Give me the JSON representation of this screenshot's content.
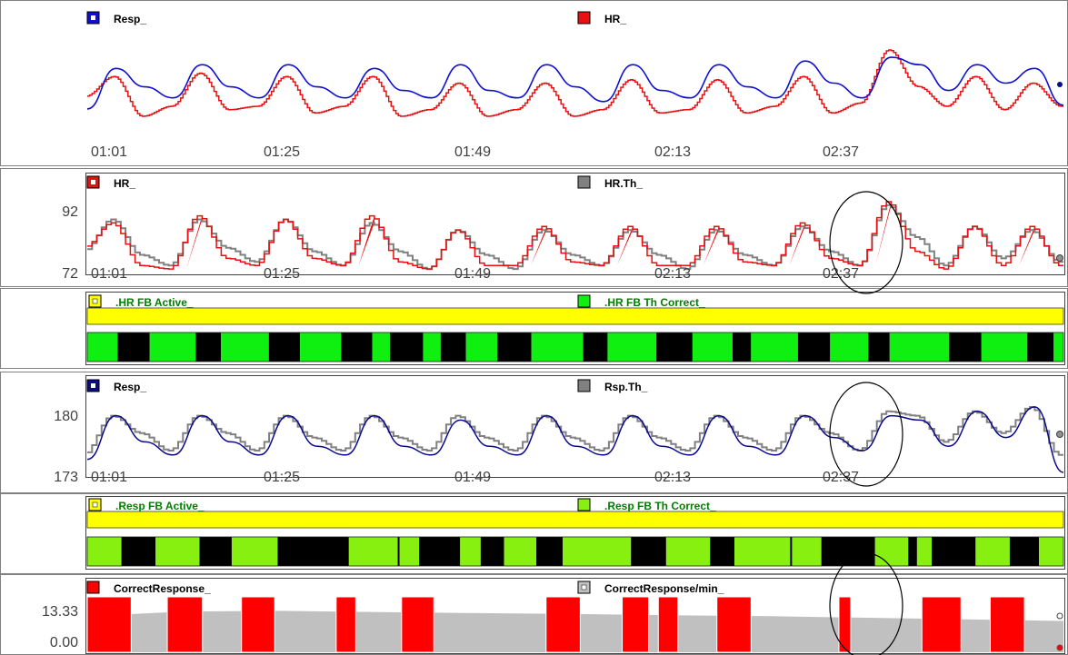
{
  "colors": {
    "resp": "#1010d0",
    "hr": "#e81010",
    "threshold": "#808080",
    "resp_dark": "#0a0a8c",
    "active": "#ffff00",
    "hr_correct": "#10f010",
    "resp_correct": "#88f010",
    "incorrect": "#000000",
    "correct_count": "#ff0000",
    "correct_rate": "#c0c0c0"
  },
  "x_ticks": [
    "01:01",
    "01:25",
    "01:49",
    "02:13",
    "02:37"
  ],
  "panels": {
    "overview": {
      "legend": [
        "Resp_",
        "HR_"
      ]
    },
    "hr": {
      "legend": [
        "HR_",
        "HR.Th_"
      ],
      "y_ticks": [
        "92",
        "72"
      ]
    },
    "hr_fb": {
      "legend": [
        ".HR  FB Active_",
        ".HR  FB Th Correct_"
      ]
    },
    "resp": {
      "legend": [
        "Resp_",
        "Rsp.Th_"
      ],
      "y_ticks": [
        "180",
        "173"
      ]
    },
    "resp_fb": {
      "legend": [
        ".Resp  FB Active_",
        ".Resp FB Th Correct_"
      ]
    },
    "correct": {
      "legend": [
        "CorrectResponse_",
        "CorrectResponse/min_"
      ],
      "y_ticks": [
        "13.33",
        "0.00"
      ]
    }
  },
  "chart_data": [
    {
      "type": "line",
      "series": [
        {
          "name": "Resp_",
          "values": [
            0.2,
            0.75,
            0.5,
            0.35,
            0.8,
            0.5,
            0.35,
            0.8,
            0.5,
            0.35,
            0.75,
            0.45,
            0.35,
            0.8,
            0.45,
            0.35,
            0.8,
            0.5,
            0.3,
            0.8,
            0.45,
            0.35,
            0.8,
            0.5,
            0.35,
            0.85,
            0.55,
            0.35,
            0.9,
            0.8,
            0.45,
            0.8,
            0.55,
            0.75,
            0.25
          ]
        },
        {
          "name": "HR_",
          "values": [
            0.25,
            0.55,
            -0.05,
            0.1,
            0.6,
            0.05,
            0.1,
            0.55,
            0.0,
            0.1,
            0.55,
            -0.05,
            0.05,
            0.45,
            -0.05,
            0.05,
            0.45,
            -0.05,
            0.05,
            0.5,
            0.0,
            0.05,
            0.5,
            0.0,
            0.1,
            0.55,
            0.0,
            0.15,
            0.95,
            0.4,
            0.1,
            0.55,
            0.05,
            0.45,
            0.1
          ]
        }
      ]
    },
    {
      "type": "line",
      "ylim": [
        72,
        92
      ],
      "series": [
        {
          "name": "HR_",
          "values": [
            79,
            86,
            74,
            73,
            88,
            76,
            74,
            87,
            76,
            74,
            88,
            75,
            73,
            84,
            74,
            74,
            85,
            75,
            74,
            85,
            74,
            74,
            85,
            75,
            74,
            86,
            76,
            74,
            92,
            78,
            73,
            85,
            74,
            85,
            74
          ]
        },
        {
          "name": "HR.Th_",
          "values": [
            78,
            87,
            77,
            74,
            87,
            79,
            75,
            87,
            78,
            74,
            86,
            78,
            73,
            84,
            77,
            73,
            84,
            77,
            74,
            84,
            77,
            73,
            84,
            77,
            74,
            85,
            78,
            74,
            91,
            82,
            74,
            85,
            76,
            84,
            75
          ]
        }
      ]
    },
    {
      "type": "timeline",
      "series": [
        {
          "name": ".HR  FB Active_",
          "states": [
            [
              0,
              1,
              1
            ]
          ]
        },
        {
          "name": ".HR  FB Th Correct_",
          "states": [
            [
              0,
              0.031,
              1
            ],
            [
              0.031,
              0.064,
              0
            ],
            [
              0.064,
              0.111,
              1
            ],
            [
              0.111,
              0.137,
              0
            ],
            [
              0.137,
              0.186,
              1
            ],
            [
              0.186,
              0.218,
              0
            ],
            [
              0.218,
              0.26,
              1
            ],
            [
              0.26,
              0.292,
              0
            ],
            [
              0.292,
              0.31,
              1
            ],
            [
              0.31,
              0.344,
              0
            ],
            [
              0.344,
              0.362,
              1
            ],
            [
              0.362,
              0.388,
              0
            ],
            [
              0.388,
              0.42,
              1
            ],
            [
              0.42,
              0.455,
              0
            ],
            [
              0.455,
              0.508,
              1
            ],
            [
              0.508,
              0.533,
              0
            ],
            [
              0.533,
              0.583,
              1
            ],
            [
              0.583,
              0.62,
              0
            ],
            [
              0.62,
              0.661,
              1
            ],
            [
              0.661,
              0.68,
              0
            ],
            [
              0.68,
              0.728,
              1
            ],
            [
              0.728,
              0.761,
              0
            ],
            [
              0.761,
              0.8,
              1
            ],
            [
              0.8,
              0.822,
              0
            ],
            [
              0.822,
              0.883,
              1
            ],
            [
              0.883,
              0.916,
              0
            ],
            [
              0.916,
              0.963,
              1
            ],
            [
              0.963,
              0.99,
              0
            ],
            [
              0.99,
              1,
              1
            ]
          ]
        }
      ]
    },
    {
      "type": "line",
      "ylim": [
        173,
        180
      ],
      "series": [
        {
          "name": "Resp_",
          "values": [
            174.5,
            179.5,
            176.5,
            175.0,
            179.5,
            176.5,
            175.0,
            179.5,
            176.0,
            175.0,
            179.5,
            176.0,
            175.0,
            179.0,
            176.0,
            175.0,
            179.5,
            176.0,
            175.0,
            179.5,
            176.0,
            175.0,
            179.5,
            176.0,
            175.0,
            179.5,
            177.0,
            175.5,
            179.5,
            179.0,
            176.0,
            180.0,
            177.0,
            180.5,
            173.0
          ]
        },
        {
          "name": "Rsp.Th_",
          "values": [
            175.0,
            179.5,
            177.5,
            175.5,
            179.5,
            177.5,
            175.5,
            179.5,
            177.0,
            175.5,
            179.5,
            177.0,
            175.5,
            179.5,
            177.0,
            175.5,
            179.5,
            177.0,
            175.5,
            179.5,
            177.0,
            175.5,
            179.5,
            177.0,
            175.5,
            179.5,
            177.5,
            175.5,
            180.0,
            179.5,
            176.5,
            180.0,
            177.5,
            180.5,
            175.0
          ]
        }
      ]
    },
    {
      "type": "timeline",
      "series": [
        {
          "name": ".Resp  FB Active_",
          "states": [
            [
              0,
              1,
              1
            ]
          ]
        },
        {
          "name": ".Resp FB Th Correct_",
          "states": [
            [
              0,
              0.035,
              1
            ],
            [
              0.035,
              0.07,
              0
            ],
            [
              0.07,
              0.115,
              1
            ],
            [
              0.115,
              0.148,
              0
            ],
            [
              0.148,
              0.195,
              1
            ],
            [
              0.195,
              0.268,
              0
            ],
            [
              0.268,
              0.318,
              1
            ],
            [
              0.318,
              0.32,
              0
            ],
            [
              0.32,
              0.34,
              1
            ],
            [
              0.34,
              0.382,
              0
            ],
            [
              0.382,
              0.403,
              1
            ],
            [
              0.403,
              0.427,
              0
            ],
            [
              0.427,
              0.46,
              1
            ],
            [
              0.46,
              0.487,
              0
            ],
            [
              0.487,
              0.557,
              1
            ],
            [
              0.557,
              0.593,
              0
            ],
            [
              0.593,
              0.638,
              1
            ],
            [
              0.638,
              0.663,
              0
            ],
            [
              0.663,
              0.72,
              1
            ],
            [
              0.72,
              0.722,
              0
            ],
            [
              0.722,
              0.752,
              1
            ],
            [
              0.752,
              0.807,
              0
            ],
            [
              0.807,
              0.841,
              1
            ],
            [
              0.841,
              0.85,
              0
            ],
            [
              0.85,
              0.865,
              1
            ],
            [
              0.865,
              0.91,
              0
            ],
            [
              0.91,
              0.945,
              1
            ],
            [
              0.945,
              0.975,
              0
            ],
            [
              0.975,
              1,
              1
            ]
          ]
        }
      ]
    },
    {
      "type": "bar",
      "ylim": [
        0,
        13.33
      ],
      "series": [
        {
          "name": "CorrectResponse_",
          "spans": [
            [
              0.0,
              0.045
            ],
            [
              0.082,
              0.118
            ],
            [
              0.158,
              0.192
            ],
            [
              0.255,
              0.275
            ],
            [
              0.322,
              0.355
            ],
            [
              0.47,
              0.505
            ],
            [
              0.548,
              0.575
            ],
            [
              0.585,
              0.605
            ],
            [
              0.645,
              0.68
            ],
            [
              0.77,
              0.782
            ],
            [
              0.855,
              0.895
            ],
            [
              0.925,
              0.96
            ]
          ]
        },
        {
          "name": "CorrectResponse/min_",
          "values": [
            11.5,
            13.0,
            13.2,
            12.8,
            12.5,
            12.2,
            11.8,
            11.5,
            11.0,
            10.5,
            10.0
          ]
        }
      ]
    }
  ]
}
